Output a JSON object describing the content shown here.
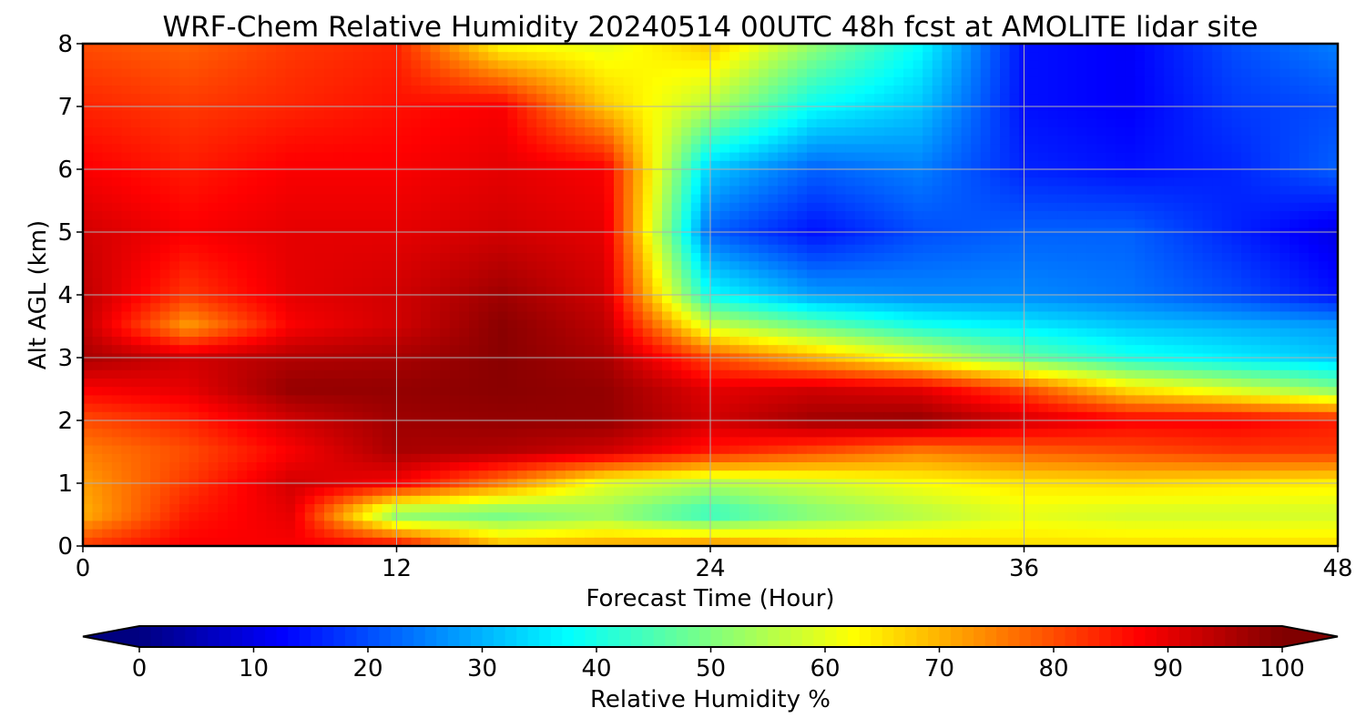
{
  "chart_data": {
    "type": "heatmap",
    "title": "WRF-Chem Relative Humidity 20240514 00UTC 48h fcst at AMOLITE lidar site",
    "xlabel": "Forecast Time (Hour)",
    "ylabel": "Alt AGL (km)",
    "xlim": [
      0,
      48
    ],
    "ylim": [
      0,
      8
    ],
    "xticks": [
      0,
      12,
      24,
      36,
      48
    ],
    "yticks": [
      0,
      1,
      2,
      3,
      4,
      5,
      6,
      7,
      8
    ],
    "grid": true,
    "colormap": "jet",
    "colorbar": {
      "label": "Relative Humidity %",
      "range": [
        0,
        100
      ],
      "ticks": [
        0,
        10,
        20,
        30,
        40,
        50,
        60,
        70,
        80,
        90,
        100
      ],
      "extend": "both",
      "orientation": "horizontal"
    },
    "x": [
      0,
      4,
      8,
      12,
      16,
      20,
      24,
      28,
      32,
      36,
      40,
      44,
      48
    ],
    "y": [
      0,
      0.5,
      1,
      1.5,
      2,
      2.5,
      3,
      3.5,
      4,
      5,
      6,
      7,
      8
    ],
    "z": [
      [
        82,
        88,
        88,
        88,
        70,
        72,
        75,
        70,
        68,
        66,
        66,
        66,
        66
      ],
      [
        70,
        85,
        90,
        50,
        48,
        52,
        42,
        50,
        55,
        60,
        58,
        58,
        58
      ],
      [
        72,
        82,
        92,
        88,
        75,
        60,
        55,
        58,
        62,
        65,
        66,
        65,
        64
      ],
      [
        75,
        80,
        88,
        96,
        95,
        92,
        85,
        80,
        75,
        78,
        80,
        82,
        82
      ],
      [
        80,
        84,
        92,
        97,
        98,
        98,
        92,
        97,
        98,
        92,
        88,
        88,
        85
      ],
      [
        88,
        90,
        98,
        98,
        99,
        98,
        90,
        92,
        90,
        80,
        65,
        58,
        50
      ],
      [
        96,
        92,
        95,
        96,
        99,
        96,
        80,
        70,
        60,
        48,
        40,
        36,
        32
      ],
      [
        94,
        72,
        88,
        92,
        99,
        94,
        58,
        48,
        40,
        36,
        32,
        30,
        28
      ],
      [
        94,
        82,
        90,
        92,
        97,
        92,
        38,
        28,
        26,
        26,
        24,
        20,
        14
      ],
      [
        92,
        88,
        90,
        90,
        92,
        90,
        22,
        14,
        20,
        22,
        22,
        16,
        10
      ],
      [
        88,
        85,
        88,
        88,
        90,
        88,
        32,
        22,
        25,
        16,
        14,
        16,
        22
      ],
      [
        84,
        82,
        84,
        86,
        88,
        68,
        55,
        38,
        32,
        14,
        12,
        18,
        20
      ],
      [
        80,
        78,
        82,
        84,
        62,
        60,
        68,
        52,
        38,
        14,
        12,
        20,
        25
      ]
    ]
  }
}
